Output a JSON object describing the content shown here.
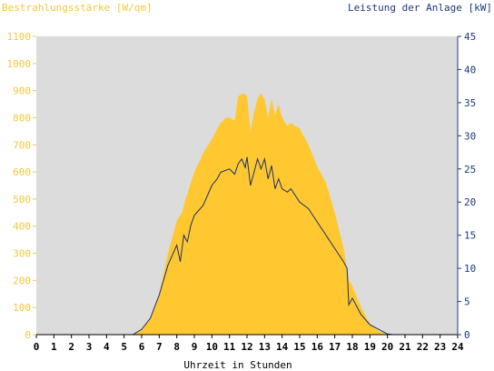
{
  "chart_data": {
    "type": "area",
    "left_axis_title": "Bestrahlungsstärke [W/qm]",
    "right_axis_title": "Leistung der Anlage [kW]",
    "xlabel": "Uhrzeit in Stunden",
    "xlim": [
      0,
      24
    ],
    "ylim_left": [
      0,
      1100
    ],
    "ylim_right": [
      0,
      45
    ],
    "x_ticks": [
      "0",
      "1",
      "2",
      "3",
      "4",
      "5",
      "6",
      "7",
      "8",
      "9",
      "10",
      "11",
      "12",
      "13",
      "14",
      "15",
      "16",
      "17",
      "18",
      "19",
      "20",
      "21",
      "22",
      "23",
      "24"
    ],
    "y_ticks_left": [
      "0",
      "100",
      "200",
      "300",
      "400",
      "500",
      "600",
      "700",
      "800",
      "900",
      "1000",
      "1100"
    ],
    "y_ticks_right": [
      "0",
      "5",
      "10",
      "15",
      "20",
      "25",
      "30",
      "35",
      "40",
      "45"
    ],
    "grid": false,
    "colors": {
      "background": "#dcdcdc",
      "irradiance": "#ffc830",
      "power": "#1a2f6b",
      "left_axis_text": "#f5c83c",
      "right_axis_text": "#1a3a7a"
    },
    "series": [
      {
        "name": "Bestrahlungsstärke [W/qm]",
        "axis": "left",
        "type": "area",
        "x": [
          0,
          5.5,
          6,
          6.5,
          7,
          7.5,
          8,
          8.3,
          8.5,
          8.8,
          9,
          9.3,
          9.5,
          10,
          10.3,
          10.5,
          10.8,
          11,
          11.3,
          11.5,
          11.8,
          12,
          12.2,
          12.4,
          12.6,
          12.8,
          13,
          13.2,
          13.4,
          13.6,
          13.8,
          14,
          14.3,
          14.5,
          15,
          15.5,
          16,
          16.5,
          17,
          17.5,
          17.8,
          18,
          18.5,
          19,
          19.5,
          20,
          20.2,
          24
        ],
        "values": [
          0,
          0,
          20,
          60,
          150,
          300,
          420,
          450,
          500,
          560,
          600,
          640,
          670,
          720,
          760,
          780,
          800,
          800,
          790,
          880,
          890,
          880,
          750,
          820,
          870,
          890,
          870,
          800,
          870,
          810,
          850,
          800,
          770,
          780,
          760,
          700,
          620,
          560,
          450,
          320,
          200,
          180,
          100,
          40,
          12,
          4,
          0,
          0
        ]
      },
      {
        "name": "Leistung der Anlage [kW]",
        "axis": "right",
        "type": "line",
        "x": [
          0,
          5.5,
          6,
          6.5,
          7,
          7.5,
          8,
          8.2,
          8.4,
          8.6,
          8.8,
          9,
          9.5,
          10,
          10.3,
          10.5,
          10.8,
          11,
          11.3,
          11.5,
          11.7,
          11.9,
          12,
          12.2,
          12.4,
          12.6,
          12.8,
          13,
          13.2,
          13.4,
          13.6,
          13.8,
          14,
          14.3,
          14.5,
          15,
          15.5,
          16,
          16.5,
          17,
          17.5,
          17.7,
          17.8,
          18,
          18.5,
          19,
          19.5,
          20,
          20.3,
          24
        ],
        "values": [
          0,
          0,
          0.8,
          2.5,
          6,
          10.5,
          13.5,
          11,
          15,
          14,
          16.5,
          18,
          19.5,
          22.5,
          23.5,
          24.5,
          24.8,
          25,
          24.2,
          25.8,
          26.5,
          25.2,
          26.8,
          22.5,
          24.5,
          26.5,
          25,
          26.5,
          23.5,
          25.5,
          22,
          23.5,
          22,
          21.5,
          22,
          20,
          19,
          17,
          15,
          13,
          11,
          10,
          4.5,
          5.5,
          3,
          1.5,
          0.8,
          0.1,
          0,
          0
        ]
      }
    ]
  }
}
